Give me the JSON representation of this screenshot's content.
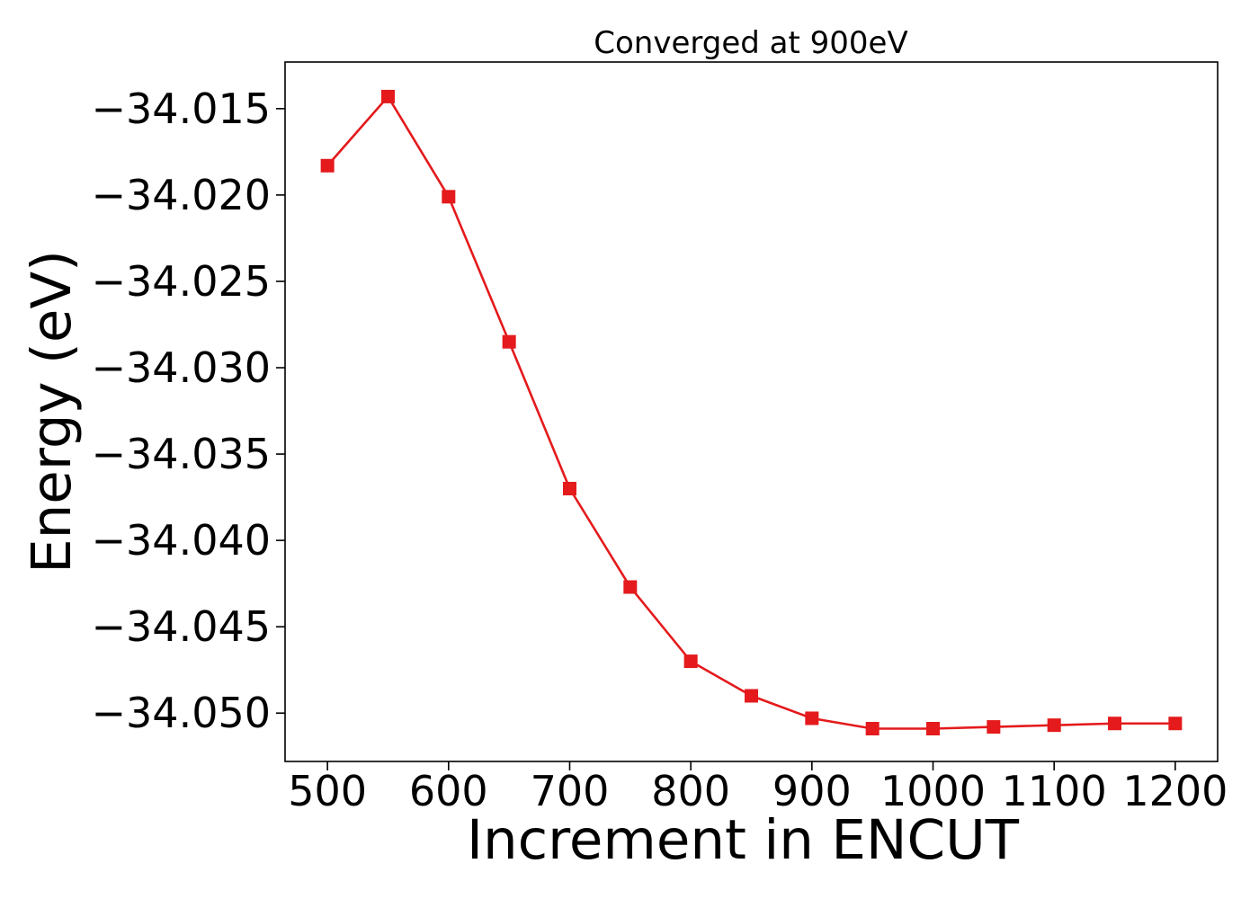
{
  "chart_data": {
    "type": "line",
    "title": "Converged at 900eV",
    "xlabel": "Increment in ENCUT",
    "ylabel": "Energy (eV)",
    "x": [
      500,
      550,
      600,
      650,
      700,
      750,
      800,
      850,
      900,
      950,
      1000,
      1050,
      1100,
      1150,
      1200
    ],
    "series": [
      {
        "values": [
          -34.0183,
          -34.0143,
          -34.0201,
          -34.0285,
          -34.037,
          -34.0427,
          -34.047,
          -34.049,
          -34.0503,
          -34.0509,
          -34.0509,
          -34.0508,
          -34.0507,
          -34.0506,
          -34.0506
        ],
        "color": "#e41a1c",
        "marker": "square"
      }
    ],
    "xlim": [
      465,
      1235
    ],
    "ylim": [
      -34.0528,
      -34.0123
    ],
    "xticks": [
      500,
      600,
      700,
      800,
      900,
      1000,
      1100,
      1200
    ],
    "yticks": [
      -34.015,
      -34.02,
      -34.025,
      -34.03,
      -34.035,
      -34.04,
      -34.045,
      -34.05
    ],
    "ytick_labels": [
      "−34.015",
      "−34.020",
      "−34.025",
      "−34.030",
      "−34.035",
      "−34.040",
      "−34.045",
      "−34.050"
    ],
    "grid": false,
    "legend": "none"
  }
}
